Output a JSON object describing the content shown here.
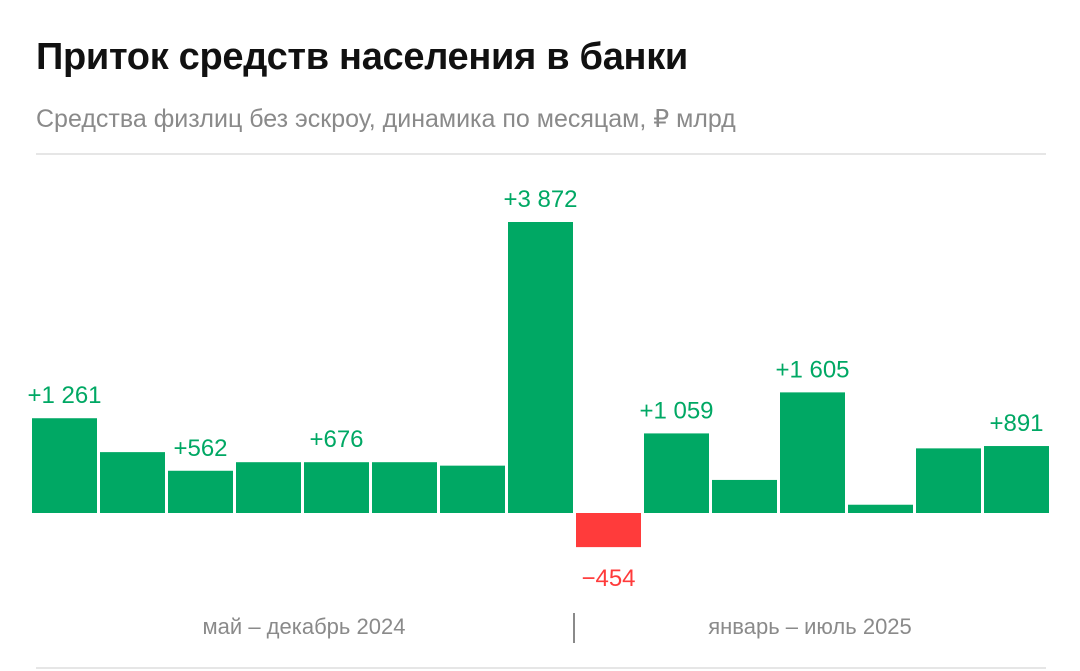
{
  "header": {
    "title": "Приток средств населения в банки",
    "subtitle": "Средства физлиц без эскроу, динамика по месяцам, ₽ млрд"
  },
  "periods": {
    "left_label": "май – декабрь 2024",
    "right_label": "январь – июль 2025"
  },
  "colors": {
    "positive": "#00a864",
    "negative": "#ff3b3b",
    "muted_text": "#8a8a8a"
  },
  "chart_data": {
    "type": "bar",
    "title": "Приток средств населения в банки",
    "subtitle": "Средства физлиц без эскроу, динамика по месяцам, ₽ млрд",
    "xlabel": "",
    "ylabel": "",
    "categories": [
      "",
      "",
      "",
      "",
      "",
      "",
      "",
      "",
      "",
      "",
      "",
      "",
      "",
      "",
      ""
    ],
    "values": [
      1261,
      810,
      562,
      676,
      676,
      676,
      630,
      3872,
      -454,
      1059,
      440,
      1605,
      110,
      860,
      891
    ],
    "data_labels": [
      "+1 261",
      "",
      "+562",
      "",
      "+676",
      "",
      "",
      "+3 872",
      "−454",
      "+1 059",
      "",
      "+1 605",
      "",
      "",
      "+891"
    ],
    "ylim": [
      -454,
      3872
    ],
    "grid": false,
    "legend": "none"
  }
}
